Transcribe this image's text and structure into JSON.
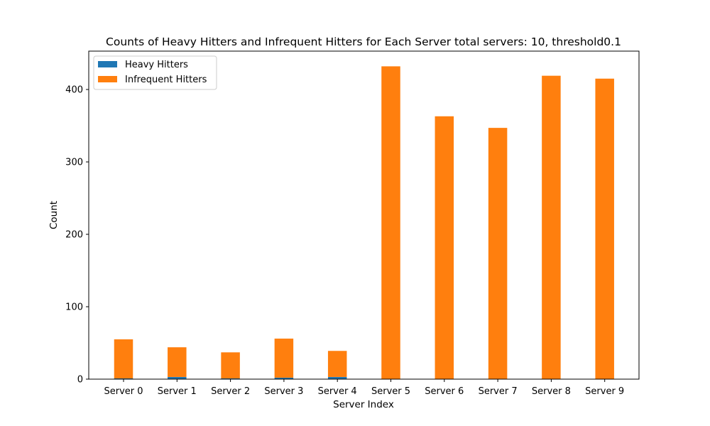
{
  "chart_data": {
    "type": "bar",
    "stacked": true,
    "title": "Counts of Heavy Hitters and Infrequent Hitters for Each Server total servers: 10, threshold0.1",
    "xlabel": "Server Index",
    "ylabel": "Count",
    "categories": [
      "Server 0",
      "Server 1",
      "Server 2",
      "Server 3",
      "Server 4",
      "Server 5",
      "Server 6",
      "Server 7",
      "Server 8",
      "Server 9"
    ],
    "series": [
      {
        "name": "Heavy Hitters",
        "color": "#1f77b4",
        "values": [
          1,
          3,
          1,
          2,
          3,
          0,
          0,
          0,
          0,
          0
        ]
      },
      {
        "name": "Infrequent Hitters",
        "color": "#ff7f0e",
        "values": [
          54,
          41,
          36,
          54,
          36,
          432,
          363,
          347,
          419,
          415
        ]
      }
    ],
    "ylim": [
      0,
      453
    ],
    "yticks": [
      0,
      100,
      200,
      300,
      400
    ],
    "grid": false,
    "legend": "top-left"
  }
}
